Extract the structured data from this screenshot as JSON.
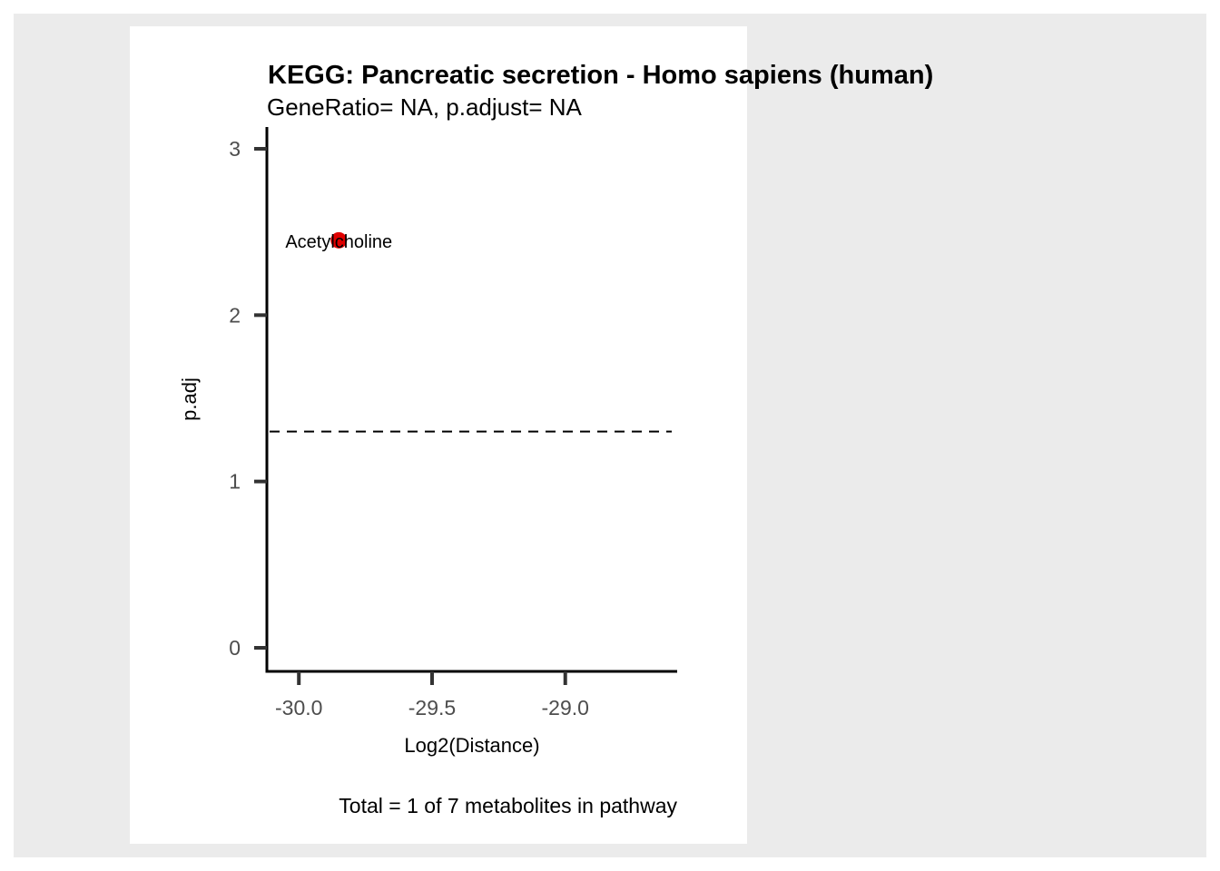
{
  "chart_data": {
    "type": "scatter",
    "title": "KEGG: Pancreatic secretion - Homo sapiens (human)",
    "subtitle": "GeneRatio= NA, p.adjust= NA",
    "xlabel": "Log2(Distance)",
    "ylabel": "p.adj",
    "caption": "Total = 1 of 7 metabolites in pathway",
    "xlim": [
      -30.12,
      -28.58
    ],
    "ylim": [
      0,
      3
    ],
    "xticks": [
      -30.0,
      -29.5,
      -29.0
    ],
    "xtick_labels": [
      "-30.0",
      "-29.5",
      "-29.0"
    ],
    "yticks": [
      0,
      1,
      2,
      3
    ],
    "ytick_labels": [
      "0",
      "1",
      "2",
      "3"
    ],
    "threshold_y": 1.3,
    "threshold_style": "dashed",
    "points": [
      {
        "x": -29.85,
        "y": 2.45,
        "label": "Acetylcholine",
        "color": "#e00000"
      }
    ],
    "grid": false
  }
}
